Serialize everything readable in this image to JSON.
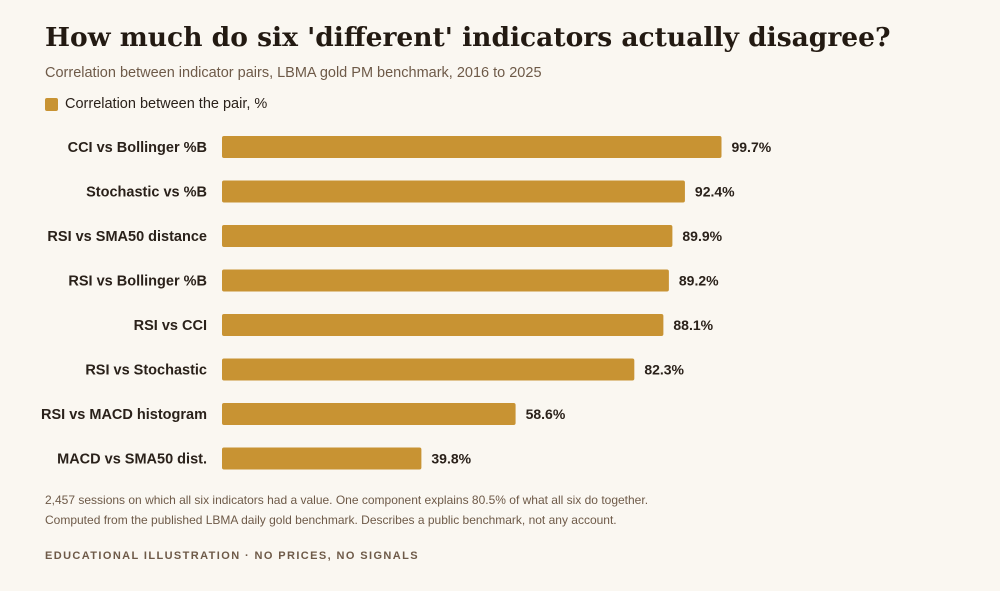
{
  "header": {
    "title": "How much do six 'different' indicators actually disagree?",
    "subtitle": "Correlation between indicator pairs, LBMA gold PM benchmark, 2016 to 2025"
  },
  "legend": {
    "label": "Correlation between the pair, %"
  },
  "footer": {
    "note1": "2,457 sessions on which all six indicators had a value. One component explains 80.5% of what all six do together.",
    "note2": "Computed from the published LBMA daily gold benchmark. Describes a public benchmark, not any account.",
    "tag": "EDUCATIONAL ILLUSTRATION · NO PRICES, NO SIGNALS"
  },
  "colors": {
    "bar": "#c89333",
    "background": "#faf7f1",
    "text": "#2a211a",
    "muted": "#6e5a48"
  },
  "chart_data": {
    "type": "bar",
    "orientation": "horizontal",
    "categories": [
      "CCI vs Bollinger %B",
      "Stochastic vs %B",
      "RSI vs SMA50 distance",
      "RSI vs Bollinger %B",
      "RSI vs CCI",
      "RSI vs Stochastic",
      "RSI vs MACD histogram",
      "MACD vs SMA50 dist."
    ],
    "values": [
      99.7,
      92.4,
      89.9,
      89.2,
      88.1,
      82.3,
      58.6,
      39.8
    ],
    "value_labels": [
      "99.7%",
      "92.4%",
      "89.9%",
      "89.2%",
      "88.1%",
      "82.3%",
      "58.6%",
      "39.8%"
    ],
    "series": [
      {
        "name": "Correlation between the pair, %",
        "values": [
          99.7,
          92.4,
          89.9,
          89.2,
          88.1,
          82.3,
          58.6,
          39.8
        ]
      }
    ],
    "xlim": [
      0,
      100
    ],
    "grid": false,
    "legend_position": "top-left"
  }
}
